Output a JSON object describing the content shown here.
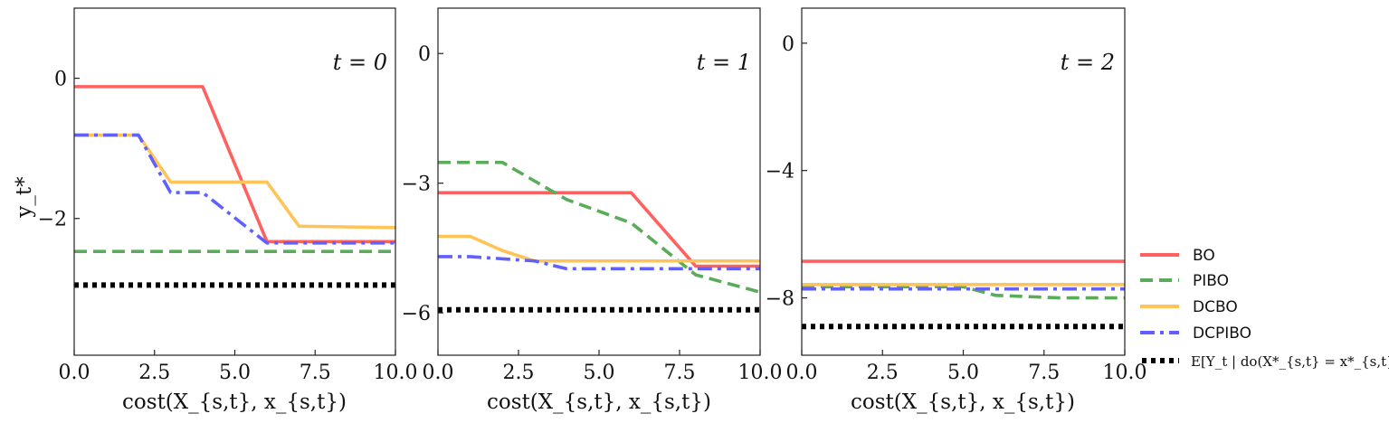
{
  "chart_data": [
    {
      "type": "line",
      "panel_label": "t = 0",
      "xlabel": "cost(X_{s,t}, x_{s,t})",
      "ylabel": "y_t*",
      "xlim": [
        0,
        10
      ],
      "ylim": [
        -3.95,
        1.0
      ],
      "xticks": [
        0,
        2.5,
        5,
        7.5,
        10
      ],
      "xtick_labels": [
        "0.0",
        "2.5",
        "5.0",
        "7.5",
        "10.0"
      ],
      "yticks": [
        0,
        -2
      ],
      "ytick_labels": [
        "0",
        "−2"
      ],
      "series": [
        {
          "name": "BO",
          "x": [
            0,
            4,
            6,
            10
          ],
          "y": [
            -0.12,
            -0.12,
            -2.33,
            -2.33
          ]
        },
        {
          "name": "PIBO",
          "x": [
            0,
            10
          ],
          "y": [
            -2.47,
            -2.47
          ]
        },
        {
          "name": "DCBO",
          "x": [
            0,
            2,
            3,
            6,
            7,
            10
          ],
          "y": [
            -0.81,
            -0.81,
            -1.48,
            -1.48,
            -2.11,
            -2.13
          ]
        },
        {
          "name": "DCPIBO",
          "x": [
            0,
            2,
            3,
            4,
            6,
            10
          ],
          "y": [
            -0.81,
            -0.81,
            -1.63,
            -1.63,
            -2.35,
            -2.35
          ]
        },
        {
          "name": "E[Y_t | do(X*_{s,t} = x*_{s,t})]",
          "x": [
            0,
            10
          ],
          "y": [
            -2.95,
            -2.95
          ]
        }
      ]
    },
    {
      "type": "line",
      "panel_label": "t = 1",
      "xlabel": "cost(X_{s,t}, x_{s,t})",
      "ylabel": "",
      "xlim": [
        0,
        10
      ],
      "ylim": [
        -6.98,
        1.05
      ],
      "xticks": [
        0,
        2.5,
        5,
        7.5,
        10
      ],
      "xtick_labels": [
        "0.0",
        "2.5",
        "5.0",
        "7.5",
        "10.0"
      ],
      "yticks": [
        0,
        -3,
        -6
      ],
      "ytick_labels": [
        "0",
        "−3",
        "−6"
      ],
      "series": [
        {
          "name": "BO",
          "x": [
            0,
            6,
            8,
            10
          ],
          "y": [
            -3.22,
            -3.22,
            -4.92,
            -4.92
          ]
        },
        {
          "name": "PIBO",
          "x": [
            0,
            2,
            4,
            6,
            8,
            10
          ],
          "y": [
            -2.52,
            -2.52,
            -3.38,
            -3.92,
            -5.12,
            -5.52
          ]
        },
        {
          "name": "DCBO",
          "x": [
            0,
            1,
            2,
            3,
            10
          ],
          "y": [
            -4.23,
            -4.23,
            -4.56,
            -4.8,
            -4.8
          ]
        },
        {
          "name": "DCPIBO",
          "x": [
            0,
            1,
            3,
            4,
            10
          ],
          "y": [
            -4.7,
            -4.7,
            -4.8,
            -4.98,
            -4.98
          ]
        },
        {
          "name": "E[Y_t | do(X*_{s,t} = x*_{s,t})]",
          "x": [
            0,
            10
          ],
          "y": [
            -5.93,
            -5.93
          ]
        }
      ]
    },
    {
      "type": "line",
      "panel_label": "t = 2",
      "xlabel": "cost(X_{s,t}, x_{s,t})",
      "ylabel": "",
      "xlim": [
        0,
        10
      ],
      "ylim": [
        -9.8,
        1.1
      ],
      "xticks": [
        0,
        2.5,
        5,
        7.5,
        10
      ],
      "xtick_labels": [
        "0.0",
        "2.5",
        "5.0",
        "7.5",
        "10.0"
      ],
      "yticks": [
        0,
        -4,
        -8
      ],
      "ytick_labels": [
        "0",
        "−4",
        "−8"
      ],
      "series": [
        {
          "name": "BO",
          "x": [
            0,
            10
          ],
          "y": [
            -6.85,
            -6.85
          ]
        },
        {
          "name": "PIBO",
          "x": [
            0,
            5,
            6,
            8,
            10
          ],
          "y": [
            -7.65,
            -7.65,
            -7.92,
            -8.0,
            -8.0
          ]
        },
        {
          "name": "DCBO",
          "x": [
            0,
            10
          ],
          "y": [
            -7.58,
            -7.58
          ]
        },
        {
          "name": "DCPIBO",
          "x": [
            0,
            10
          ],
          "y": [
            -7.72,
            -7.72
          ]
        },
        {
          "name": "E[Y_t | do(X*_{s,t} = x*_{s,t})]",
          "x": [
            0,
            10
          ],
          "y": [
            -8.9,
            -8.9
          ]
        }
      ]
    }
  ],
  "legend": {
    "placement": "right-bottom",
    "entries": [
      {
        "label": "BO",
        "color": "#ff6060",
        "style": "solid"
      },
      {
        "label": "PIBO",
        "color": "#5aab5a",
        "style": "dashed"
      },
      {
        "label": "DCBO",
        "color": "#ffc455",
        "style": "solid"
      },
      {
        "label": "DCPIBO",
        "color": "#6060ff",
        "style": "dashdot"
      },
      {
        "label": "E[Y_t | do(X*_{s,t} = x*_{s,t})]",
        "color": "#000000",
        "style": "dotted"
      }
    ]
  },
  "series_styles": {
    "BO": {
      "color": "#ff6060",
      "dash": ""
    },
    "PIBO": {
      "color": "#5aab5a",
      "dash": "14,7"
    },
    "DCBO": {
      "color": "#ffc455",
      "dash": ""
    },
    "DCPIBO": {
      "color": "#6060ff",
      "dash": "16,6,4,6"
    },
    "E[Y_t | do(X*_{s,t} = x*_{s,t})]": {
      "color": "#000000",
      "dash": "5,5"
    }
  }
}
